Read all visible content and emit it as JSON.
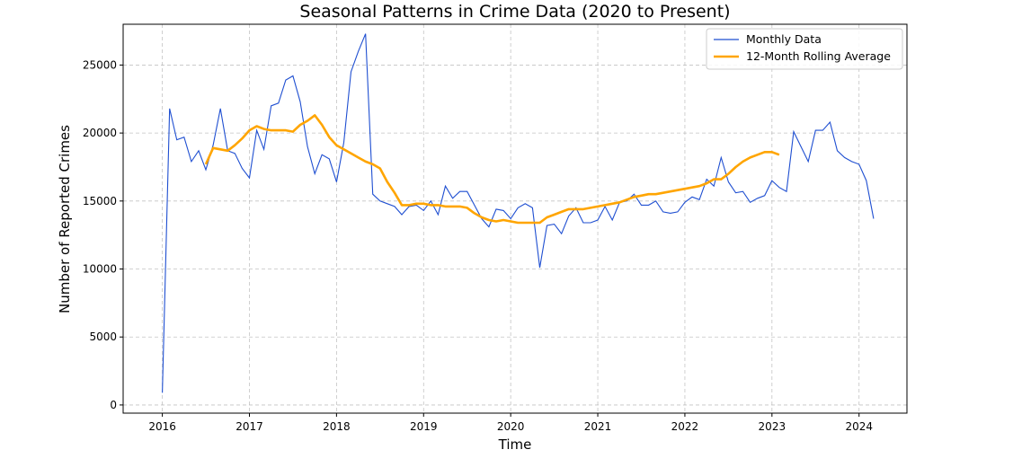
{
  "chart_data": {
    "type": "line",
    "title": "Seasonal Patterns in Crime Data (2020 to Present)",
    "xlabel": "Time",
    "ylabel": "Number of Reported Crimes",
    "xlim": [
      2015.55,
      2024.55
    ],
    "ylim": [
      -600,
      28000
    ],
    "x_ticks": [
      2016,
      2017,
      2018,
      2019,
      2020,
      2021,
      2022,
      2023,
      2024
    ],
    "y_ticks": [
      0,
      5000,
      10000,
      15000,
      20000,
      25000
    ],
    "grid": true,
    "legend_position": "top-right",
    "colors": {
      "monthly": "#1f4fd1",
      "rolling": "#ffa500"
    },
    "series": [
      {
        "name": "Monthly Data",
        "x_start": "2016-01",
        "values": [
          900,
          21800,
          19500,
          19700,
          17900,
          18700,
          17300,
          19100,
          21800,
          18700,
          18500,
          17400,
          16700,
          20200,
          18800,
          22000,
          22200,
          23900,
          24200,
          22300,
          19000,
          17000,
          18400,
          18100,
          16400,
          19300,
          24500,
          26000,
          27300,
          15500,
          15000,
          14800,
          14600,
          14000,
          14600,
          14700,
          14300,
          15000,
          14000,
          16100,
          15200,
          15700,
          15700,
          14700,
          13700,
          13100,
          14400,
          14300,
          13700,
          14500,
          14800,
          14500,
          10100,
          13200,
          13300,
          12600,
          13900,
          14500,
          13400,
          13400,
          13600,
          14600,
          13600,
          14900,
          15000,
          15500,
          14700,
          14700,
          15000,
          14200,
          14100,
          14200,
          14900,
          15300,
          15100,
          16600,
          16100,
          18200,
          16400,
          15600,
          15700,
          14900,
          15200,
          15400,
          16500,
          16000,
          15700,
          20100,
          19000,
          17900,
          20200,
          20200,
          20800,
          18700,
          18200,
          17900,
          17700,
          16500,
          13700
        ]
      },
      {
        "name": "12-Month Rolling Average",
        "x_start": "2016-07",
        "values": [
          17700,
          18900,
          18800,
          18700,
          19100,
          19600,
          20200,
          20500,
          20300,
          20200,
          20200,
          20200,
          20100,
          20600,
          20900,
          21300,
          20600,
          19700,
          19100,
          18800,
          18500,
          18200,
          17900,
          17700,
          17400,
          16400,
          15600,
          14700,
          14700,
          14800,
          14800,
          14700,
          14700,
          14600,
          14600,
          14600,
          14500,
          14100,
          13800,
          13600,
          13500,
          13600,
          13500,
          13400,
          13400,
          13400,
          13400,
          13800,
          14000,
          14200,
          14400,
          14400,
          14400,
          14500,
          14600,
          14700,
          14800,
          14900,
          15100,
          15300,
          15400,
          15500,
          15500,
          15600,
          15700,
          15800,
          15900,
          16000,
          16100,
          16300,
          16600,
          16600,
          17000,
          17500,
          17900,
          18200,
          18400,
          18600,
          18600,
          18400
        ]
      }
    ]
  }
}
